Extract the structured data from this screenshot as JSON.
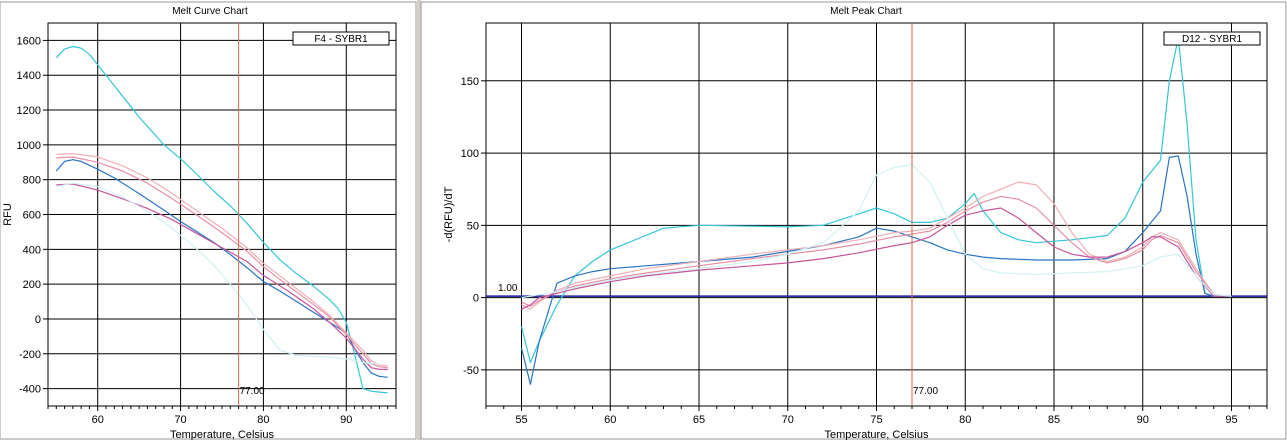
{
  "panels": {
    "left_title": "Melt Curve Chart",
    "right_title": "Melt Peak Chart",
    "splitter_button": "+"
  },
  "chart_data": [
    {
      "type": "line",
      "title": "Melt Curve Chart",
      "xlabel": "Temperature, Celsius",
      "ylabel": "RFU",
      "xlim": [
        54,
        96
      ],
      "ylim": [
        -500,
        1700
      ],
      "xticks": [
        60,
        70,
        80,
        90
      ],
      "yticks": [
        -400,
        -200,
        0,
        200,
        400,
        600,
        800,
        1000,
        1200,
        1400,
        1600
      ],
      "grid": true,
      "legend": "F4 - SYBR1",
      "legend_position": "top-right",
      "marker_line": {
        "x": 77.0,
        "label": "77.00",
        "color": "#d4694a"
      },
      "series": [
        {
          "color": "#33c6d8",
          "x": [
            55,
            56,
            57,
            58,
            59,
            60,
            62,
            65,
            68,
            70,
            72,
            74,
            76,
            77,
            78,
            80,
            82,
            84,
            86,
            88,
            89,
            90,
            91,
            92,
            93,
            94,
            95
          ],
          "y": [
            1500,
            1550,
            1565,
            1555,
            1520,
            1460,
            1340,
            1160,
            1000,
            920,
            830,
            735,
            650,
            600,
            550,
            440,
            340,
            260,
            190,
            110,
            60,
            -20,
            -200,
            -400,
            -415,
            -420,
            -425
          ]
        },
        {
          "color": "#2a74c4",
          "x": [
            55,
            56,
            57,
            58,
            60,
            62,
            65,
            68,
            70,
            72,
            74,
            76,
            78,
            80,
            82,
            84,
            86,
            88,
            90,
            91,
            92,
            93,
            94,
            95
          ],
          "y": [
            850,
            905,
            915,
            905,
            860,
            810,
            720,
            625,
            560,
            500,
            440,
            370,
            295,
            215,
            160,
            100,
            40,
            -20,
            -80,
            -170,
            -250,
            -310,
            -330,
            -335
          ]
        },
        {
          "color": "#eeb0b6",
          "x": [
            55,
            57,
            60,
            63,
            66,
            69,
            72,
            75,
            78,
            80,
            83,
            86,
            88,
            90,
            92,
            93,
            94,
            95
          ],
          "y": [
            945,
            950,
            930,
            880,
            810,
            720,
            620,
            520,
            410,
            320,
            210,
            100,
            20,
            -80,
            -180,
            -240,
            -265,
            -270
          ]
        },
        {
          "color": "#e890a5",
          "x": [
            55,
            57,
            60,
            63,
            66,
            69,
            72,
            75,
            78,
            80,
            83,
            86,
            88,
            90,
            92,
            93,
            94,
            95
          ],
          "y": [
            925,
            930,
            900,
            850,
            780,
            690,
            595,
            495,
            390,
            300,
            190,
            85,
            10,
            -90,
            -200,
            -255,
            -275,
            -280
          ]
        },
        {
          "color": "#c8559a",
          "x": [
            55,
            57,
            60,
            63,
            66,
            69,
            72,
            75,
            78,
            80,
            83,
            86,
            88,
            90,
            92,
            93,
            94,
            95
          ],
          "y": [
            770,
            775,
            740,
            690,
            635,
            570,
            490,
            410,
            330,
            250,
            160,
            60,
            -20,
            -110,
            -230,
            -280,
            -290,
            -290
          ]
        },
        {
          "color": "#d0f1f4",
          "x": [
            55,
            57,
            60,
            63,
            66,
            69,
            72,
            74,
            76,
            78,
            80,
            82,
            84,
            86,
            88,
            90,
            92,
            94
          ],
          "y": [
            760,
            780,
            760,
            700,
            620,
            520,
            400,
            310,
            200,
            80,
            -60,
            -180,
            -210,
            -215,
            -220,
            -230,
            -250,
            -260
          ]
        }
      ]
    },
    {
      "type": "line",
      "title": "Melt Peak Chart",
      "xlabel": "Temperature, Celsius",
      "ylabel": "-d(RFU)/dT",
      "xlim": [
        53,
        97
      ],
      "ylim": [
        -75,
        190
      ],
      "xticks": [
        55,
        60,
        65,
        70,
        75,
        80,
        85,
        90,
        95
      ],
      "yticks": [
        -50,
        0,
        50,
        100,
        150
      ],
      "grid": true,
      "legend": "D12 - SYBR1",
      "legend_position": "top-right",
      "threshold": {
        "y": 1.0,
        "label": "1.00",
        "color": "#1a1aa8"
      },
      "marker_line": {
        "x": 77.0,
        "label": "77.00",
        "color": "#d4694a"
      },
      "series": [
        {
          "color": "#33c6d8",
          "x": [
            55,
            55.5,
            56,
            57,
            58,
            59,
            60,
            62,
            63,
            65,
            70,
            72,
            74,
            75,
            76,
            77,
            78,
            79,
            80,
            80.5,
            81,
            82,
            83,
            84,
            85,
            86,
            88,
            89,
            90,
            91,
            91.5,
            92,
            92.5,
            93,
            93.5,
            94,
            95
          ],
          "y": [
            -20,
            -45,
            -30,
            -5,
            15,
            25,
            33,
            43,
            48,
            50,
            49,
            50,
            58,
            62,
            58,
            52,
            52,
            55,
            65,
            72,
            60,
            45,
            40,
            38,
            39,
            40,
            43,
            55,
            80,
            95,
            150,
            180,
            120,
            40,
            3,
            1,
            1
          ]
        },
        {
          "color": "#2a74c4",
          "x": [
            55,
            55.5,
            56,
            56.5,
            57,
            58,
            59,
            60,
            62,
            65,
            68,
            70,
            72,
            74,
            75,
            76,
            77,
            78,
            79,
            80,
            81,
            82,
            84,
            86,
            88,
            89,
            90,
            91,
            91.5,
            92,
            92.5,
            93,
            93.5,
            94,
            95
          ],
          "y": [
            -35,
            -60,
            -30,
            -10,
            10,
            15,
            18,
            20,
            22,
            25,
            28,
            32,
            36,
            42,
            48,
            46,
            42,
            38,
            33,
            30,
            28,
            27,
            26,
            26,
            27,
            32,
            45,
            60,
            97,
            98,
            70,
            30,
            3,
            1,
            1
          ]
        },
        {
          "color": "#eeb0b6",
          "x": [
            55,
            55.5,
            56,
            57,
            58,
            60,
            62,
            65,
            68,
            70,
            72,
            74,
            76,
            77,
            78,
            79,
            80,
            81,
            82,
            83,
            84,
            85,
            86,
            87,
            88,
            89,
            90,
            90.5,
            91,
            92,
            93,
            94,
            95
          ],
          "y": [
            -5,
            -8,
            -3,
            5,
            10,
            15,
            20,
            25,
            30,
            33,
            36,
            40,
            45,
            46,
            48,
            55,
            62,
            70,
            75,
            80,
            78,
            65,
            45,
            30,
            25,
            28,
            35,
            42,
            45,
            40,
            20,
            2,
            1
          ]
        },
        {
          "color": "#e890a5",
          "x": [
            55,
            55.5,
            56,
            57,
            58,
            60,
            62,
            65,
            68,
            70,
            72,
            74,
            76,
            77,
            78,
            79,
            80,
            81,
            82,
            83,
            84,
            85,
            86,
            87,
            88,
            89,
            90,
            90.5,
            91,
            92,
            93,
            94,
            95
          ],
          "y": [
            -3,
            -6,
            -2,
            4,
            8,
            13,
            17,
            22,
            27,
            30,
            33,
            37,
            42,
            44,
            46,
            52,
            60,
            66,
            70,
            68,
            62,
            50,
            38,
            28,
            24,
            27,
            33,
            40,
            43,
            38,
            18,
            2,
            1
          ]
        },
        {
          "color": "#c8559a",
          "x": [
            55,
            55.5,
            56,
            57,
            58,
            60,
            62,
            65,
            68,
            70,
            72,
            74,
            76,
            77,
            78,
            79,
            80,
            81,
            82,
            83,
            84,
            85,
            86,
            87,
            88,
            89,
            90,
            90.5,
            91,
            92,
            93,
            94,
            95
          ],
          "y": [
            -8,
            -5,
            0,
            3,
            6,
            11,
            15,
            19,
            22,
            24,
            27,
            31,
            36,
            38,
            42,
            50,
            57,
            60,
            62,
            55,
            45,
            35,
            30,
            28,
            28,
            32,
            38,
            42,
            42,
            35,
            15,
            1,
            1
          ]
        },
        {
          "color": "#d0f1f4",
          "x": [
            55,
            56,
            57,
            58,
            60,
            62,
            65,
            68,
            70,
            72,
            74,
            75,
            76,
            77,
            78,
            79,
            80,
            81,
            82,
            84,
            86,
            88,
            90,
            91,
            92,
            93,
            94,
            95
          ],
          "y": [
            0,
            2,
            4,
            7,
            12,
            16,
            20,
            25,
            30,
            38,
            60,
            85,
            90,
            92,
            80,
            55,
            30,
            20,
            17,
            16,
            17,
            18,
            22,
            28,
            30,
            15,
            2,
            1
          ]
        }
      ]
    }
  ]
}
